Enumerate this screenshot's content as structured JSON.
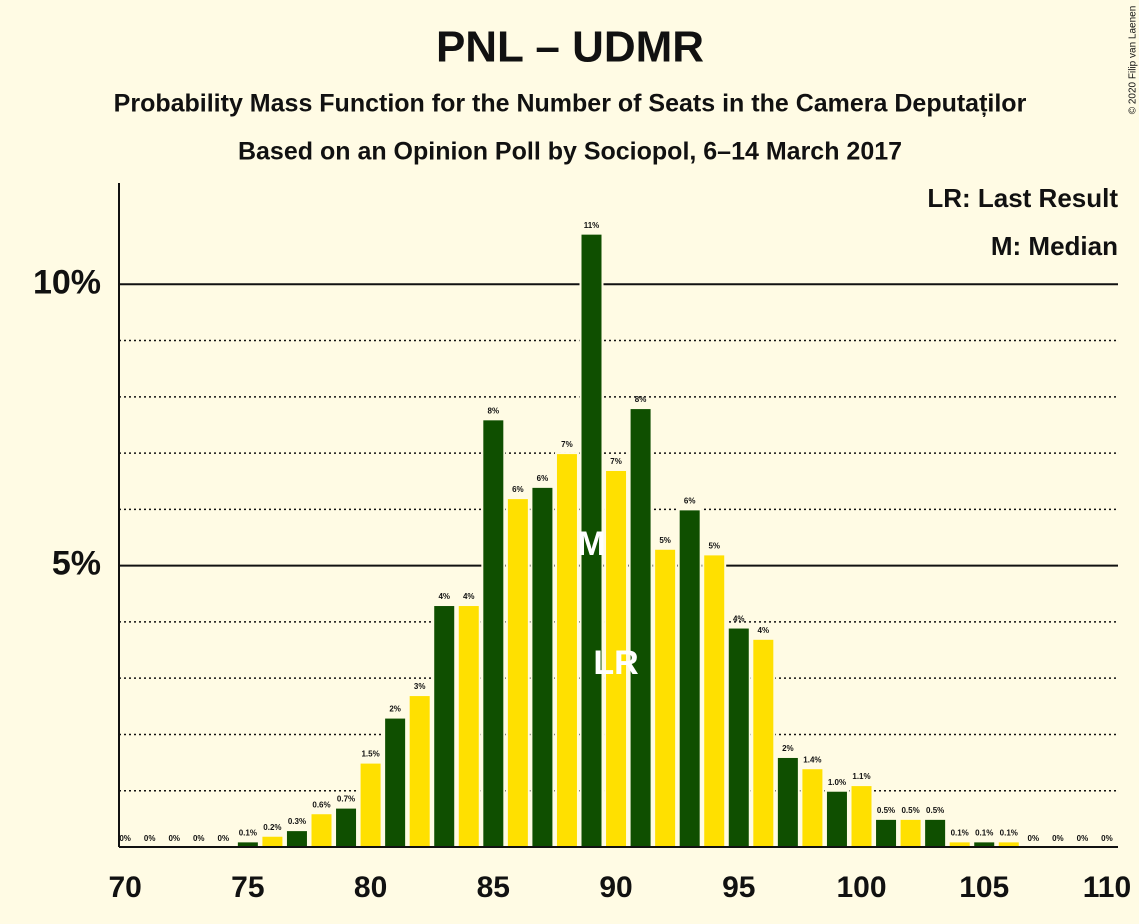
{
  "chart_data": {
    "type": "bar",
    "title": "PNL – UDMR",
    "subtitle": "Probability Mass Function for the Number of Seats in the Camera Deputaților",
    "subtitle2": "Based on an Opinion Poll by Sociopol, 6–14 March 2017",
    "copyright": "© 2020 Filip van Laenen",
    "legend": [
      "LR: Last Result",
      "M: Median"
    ],
    "legend_position": "upper right",
    "x": [
      70,
      71,
      72,
      73,
      74,
      75,
      76,
      77,
      78,
      79,
      80,
      81,
      82,
      83,
      84,
      85,
      86,
      87,
      88,
      89,
      90,
      91,
      92,
      93,
      94,
      95,
      96,
      97,
      98,
      99,
      100,
      101,
      102,
      103,
      104,
      105,
      106,
      107,
      108,
      109,
      110
    ],
    "series": [
      {
        "colors": [
          "#ffe000",
          "#0f4f00"
        ],
        "values": [
          0,
          0,
          0,
          0,
          0,
          0.1,
          0.2,
          0.3,
          0.6,
          0.7,
          1.5,
          2.3,
          2.7,
          4.3,
          4.3,
          7.6,
          6.2,
          6.4,
          7.0,
          10.9,
          6.7,
          7.8,
          5.3,
          6.0,
          5.2,
          3.9,
          3.7,
          1.6,
          1.4,
          1.0,
          1.1,
          0.5,
          0.5,
          0.5,
          0.1,
          0.1,
          0.1,
          0,
          0,
          0,
          0
        ],
        "value_labels": [
          "0%",
          "0%",
          "0%",
          "0%",
          "0%",
          "0.1%",
          "0.2%",
          "0.3%",
          "0.6%",
          "0.7%",
          "1.5%",
          "2%",
          "3%",
          "4%",
          "4%",
          "8%",
          "6%",
          "6%",
          "7%",
          "11%",
          "7%",
          "8%",
          "5%",
          "6%",
          "5%",
          "4%",
          "4%",
          "2%",
          "1.4%",
          "1.0%",
          "1.1%",
          "0.5%",
          "0.5%",
          "0.5%",
          "0.1%",
          "0.1%",
          "0.1%",
          "0%",
          "0%",
          "0%",
          "0%"
        ]
      }
    ],
    "annotations": [
      {
        "text": "M",
        "x": 89
      },
      {
        "text": "LR",
        "x": 90
      }
    ],
    "xlim": [
      69.75,
      110.45
    ],
    "xticks": [
      70,
      75,
      80,
      85,
      90,
      95,
      100,
      105,
      110
    ],
    "ylim": [
      0,
      11.8
    ],
    "yticks": [
      {
        "value": 5,
        "label": "5%"
      },
      {
        "value": 10,
        "label": "10%"
      }
    ],
    "minor_yticks": [
      1,
      2,
      3,
      4,
      6,
      7,
      8,
      9
    ],
    "grid": true
  }
}
